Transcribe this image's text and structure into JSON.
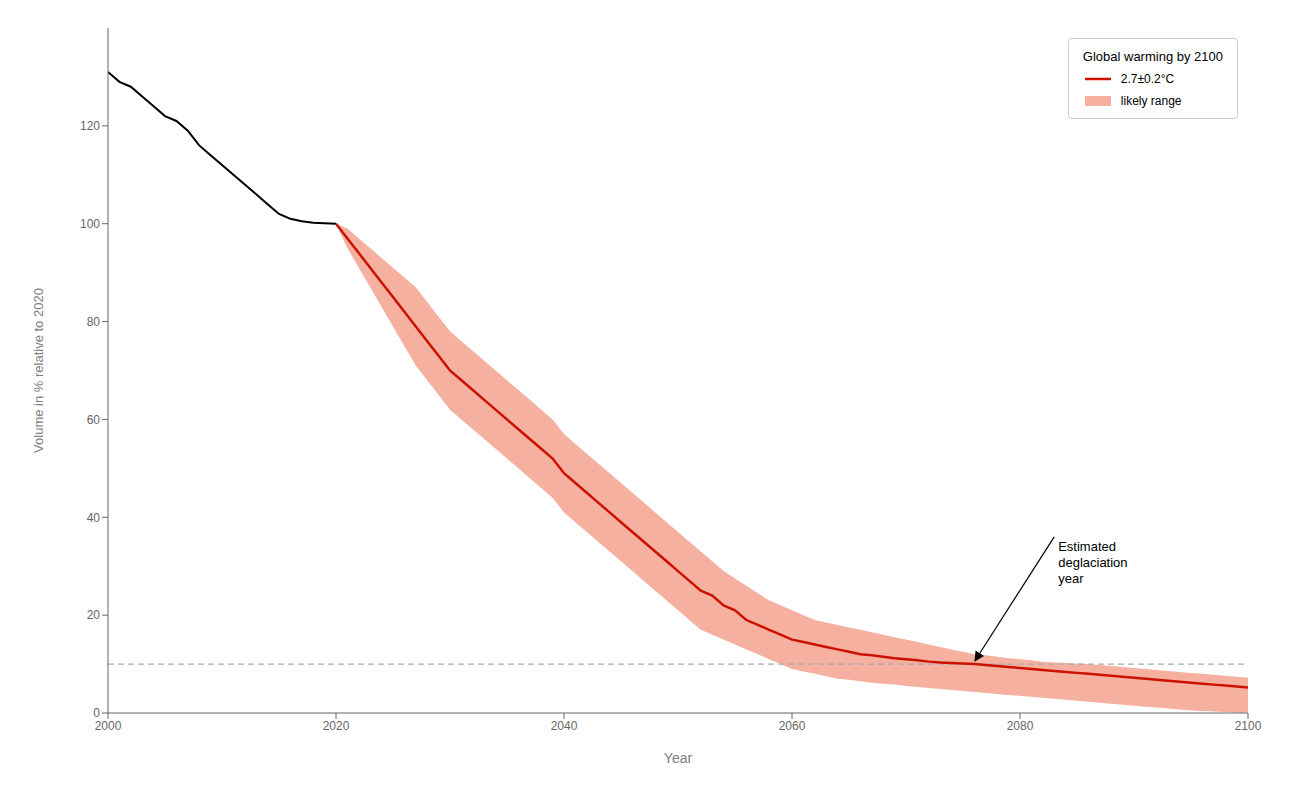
{
  "chart_data": {
    "type": "line",
    "xlabel": "Year",
    "ylabel": "Volume in % relative to 2020",
    "xlim": [
      2000,
      2100
    ],
    "ylim": [
      0,
      140
    ],
    "xticks": [
      2000,
      2020,
      2040,
      2060,
      2080,
      2100
    ],
    "yticks": [
      0,
      20,
      40,
      60,
      80,
      100,
      120
    ],
    "grid": false,
    "legend": "upper right",
    "legend_title": "Global warming by 2100",
    "series": [
      {
        "name": "likely range",
        "type": "range",
        "color": "#f5b0a0",
        "x": [
          2020,
          2021,
          2022,
          2023,
          2024,
          2025,
          2026,
          2027,
          2028,
          2029,
          2030,
          2031,
          2032,
          2033,
          2034,
          2035,
          2036,
          2037,
          2038,
          2039,
          2040,
          2041,
          2042,
          2043,
          2044,
          2045,
          2046,
          2047,
          2048,
          2049,
          2050,
          2051,
          2052,
          2053,
          2054,
          2055,
          2056,
          2057,
          2058,
          2059,
          2060,
          2061,
          2062,
          2063,
          2064,
          2065,
          2066,
          2067,
          2068,
          2069,
          2070,
          2071,
          2072,
          2073,
          2074,
          2075,
          2076,
          2077,
          2078,
          2079,
          2080,
          2081,
          2082,
          2083,
          2084,
          2085,
          2086,
          2087,
          2088,
          2089,
          2090,
          2091,
          2092,
          2093,
          2094,
          2095,
          2096,
          2097,
          2098,
          2099,
          2100
        ],
        "lower": [
          100,
          95,
          91,
          87,
          83,
          79,
          75,
          71,
          68,
          65,
          62,
          60,
          58,
          56,
          54,
          52,
          50,
          48,
          46,
          44,
          41,
          39,
          37,
          35,
          33,
          31,
          29,
          27,
          25,
          23,
          21,
          19,
          17,
          16,
          15,
          14,
          13,
          12,
          11,
          10,
          9,
          8.5,
          8,
          7.5,
          7,
          6.8,
          6.5,
          6.2,
          6.0,
          5.8,
          5.5,
          5.3,
          5.1,
          4.9,
          4.7,
          4.5,
          4.3,
          4.1,
          3.9,
          3.7,
          3.5,
          3.3,
          3.1,
          2.9,
          2.7,
          2.5,
          2.3,
          2.1,
          1.9,
          1.7,
          1.5,
          1.3,
          1.1,
          0.9,
          0.7,
          0.5,
          0.4,
          0.3,
          0.2,
          0.1,
          0.1
        ],
        "upper": [
          100,
          99,
          97,
          95,
          93,
          91,
          89,
          87,
          84,
          81,
          78,
          76,
          74,
          72,
          70,
          68,
          66,
          64,
          62,
          60,
          57,
          55,
          53,
          51,
          49,
          47,
          45,
          43,
          41,
          39,
          37,
          35,
          33,
          31,
          29,
          27.5,
          26,
          24.5,
          23,
          22,
          21,
          20,
          19,
          18.5,
          18,
          17.5,
          17,
          16.5,
          16,
          15.5,
          15,
          14.5,
          14,
          13.5,
          13,
          12.5,
          12,
          11.8,
          11.5,
          11.2,
          11,
          10.8,
          10.5,
          10.3,
          10.2,
          10.1,
          10.0,
          9.8,
          9.6,
          9.4,
          9.2,
          9.0,
          8.8,
          8.6,
          8.4,
          8.2,
          8.0,
          7.8,
          7.6,
          7.4,
          7.2
        ]
      },
      {
        "type": "line",
        "color": "#000000",
        "x": [
          2000,
          2001,
          2002,
          2003,
          2004,
          2005,
          2006,
          2007,
          2008,
          2009,
          2010,
          2011,
          2012,
          2013,
          2014,
          2015,
          2016,
          2017,
          2018,
          2019,
          2020
        ],
        "values": [
          131,
          129,
          128,
          126,
          124,
          122,
          121,
          119,
          116,
          114,
          112,
          110,
          108,
          106,
          104,
          102,
          101,
          100.5,
          100.2,
          100.1,
          100
        ]
      },
      {
        "name": "2.7±0.2°C",
        "type": "line",
        "color": "#cc1100",
        "x": [
          2020,
          2021,
          2022,
          2023,
          2024,
          2025,
          2026,
          2027,
          2028,
          2029,
          2030,
          2031,
          2032,
          2033,
          2034,
          2035,
          2036,
          2037,
          2038,
          2039,
          2040,
          2041,
          2042,
          2043,
          2044,
          2045,
          2046,
          2047,
          2048,
          2049,
          2050,
          2051,
          2052,
          2053,
          2054,
          2055,
          2056,
          2057,
          2058,
          2059,
          2060,
          2061,
          2062,
          2063,
          2064,
          2065,
          2066,
          2067,
          2068,
          2069,
          2070,
          2071,
          2072,
          2073,
          2074,
          2075,
          2076,
          2077,
          2078,
          2079,
          2080,
          2081,
          2082,
          2083,
          2084,
          2085,
          2086,
          2087,
          2088,
          2089,
          2090,
          2091,
          2092,
          2093,
          2094,
          2095,
          2096,
          2097,
          2098,
          2099,
          2100
        ],
        "values": [
          100,
          97,
          94,
          91,
          88,
          85,
          82,
          79,
          76,
          73,
          70,
          68,
          66,
          64,
          62,
          60,
          58,
          56,
          54,
          52,
          49,
          47,
          45,
          43,
          41,
          39,
          37,
          35,
          33,
          31,
          29,
          27,
          25,
          24,
          22,
          21,
          19,
          18,
          17,
          16,
          15,
          14.5,
          14,
          13.5,
          13,
          12.5,
          12,
          11.8,
          11.5,
          11.2,
          11,
          10.8,
          10.5,
          10.3,
          10.2,
          10.1,
          10.0,
          9.8,
          9.6,
          9.4,
          9.2,
          9.0,
          8.8,
          8.6,
          8.4,
          8.2,
          8.0,
          7.8,
          7.6,
          7.4,
          7.2,
          7.0,
          6.8,
          6.6,
          6.4,
          6.2,
          6.0,
          5.8,
          5.6,
          5.4,
          5.2
        ]
      }
    ],
    "reference_lines": [
      {
        "y": 10,
        "color": "#aaaaaa",
        "line_style": "dashed"
      }
    ],
    "annotations": [
      {
        "text": "Estimated\ndeglaciation\nyear",
        "xy": [
          2076,
          10.5
        ],
        "text_xy": [
          2083,
          36
        ]
      }
    ]
  }
}
